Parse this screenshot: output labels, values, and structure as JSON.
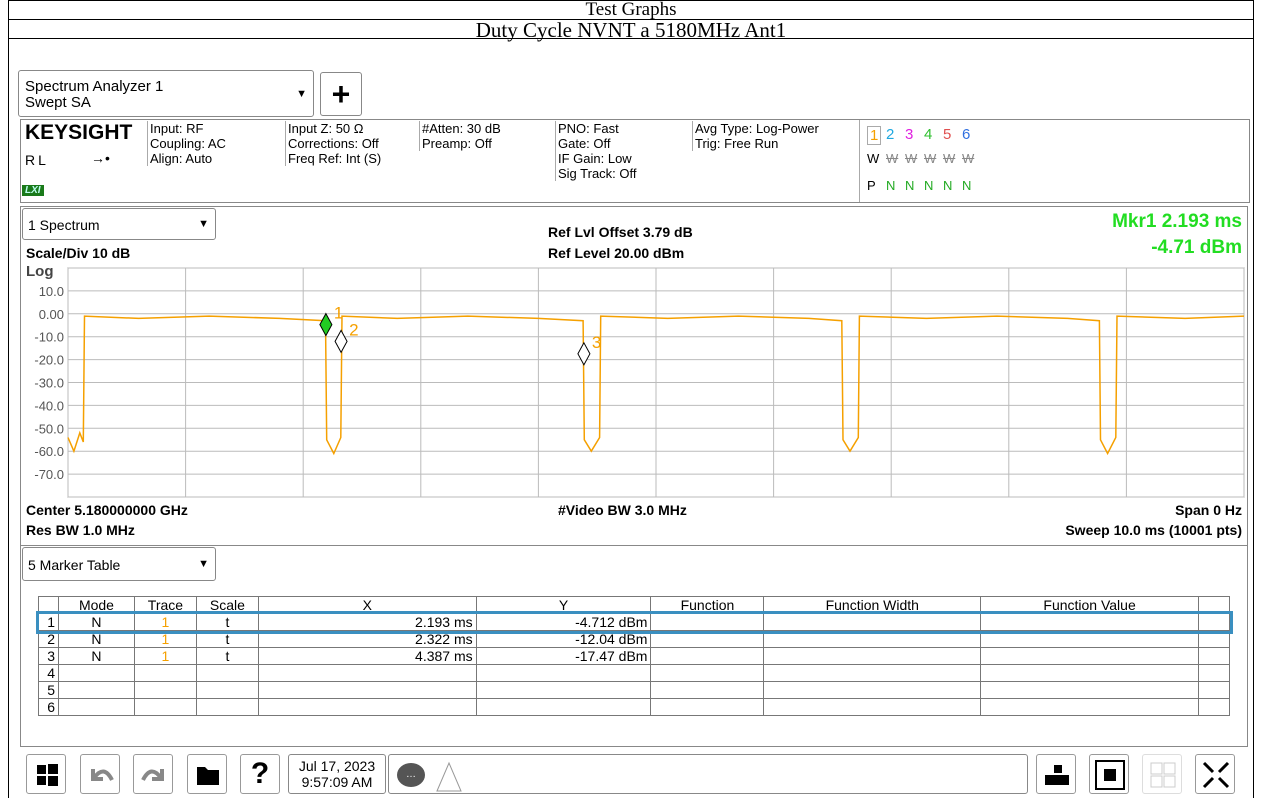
{
  "header": {
    "title": "Test Graphs",
    "subtitle": "Duty Cycle NVNT a 5180MHz Ant1"
  },
  "tab": {
    "name": "Spectrum Analyzer 1",
    "mode": "Swept SA",
    "add": "+"
  },
  "info": {
    "brand": "KEYSIGHT",
    "rl": "RL",
    "lxi": "LXI",
    "columns": [
      [
        "Input: RF",
        "Coupling: AC",
        "Align: Auto"
      ],
      [
        "Input Z: 50 Ω",
        "Corrections: Off",
        "Freq Ref: Int (S)"
      ],
      [
        "#Atten: 30 dB",
        "Preamp: Off"
      ],
      [
        "PNO: Fast",
        "Gate: Off",
        "IF Gain: Low",
        "Sig Track: Off"
      ],
      [
        "Avg Type: Log-Power",
        "Trig: Free Run"
      ]
    ],
    "traces": [
      {
        "num": "1",
        "color": "#f5a000",
        "w": "W",
        "p": "P"
      },
      {
        "num": "2",
        "color": "#1fa8e0",
        "w": "W",
        "p": "N"
      },
      {
        "num": "3",
        "color": "#e020e0",
        "w": "W",
        "p": "N"
      },
      {
        "num": "4",
        "color": "#30c030",
        "w": "W",
        "p": "N"
      },
      {
        "num": "5",
        "color": "#e05050",
        "w": "W",
        "p": "N"
      },
      {
        "num": "6",
        "color": "#3070e0",
        "w": "W",
        "p": "N"
      }
    ]
  },
  "graph": {
    "window": "1 Spectrum",
    "scale": "Scale/Div 10 dB",
    "log": "Log",
    "ref_offset": "Ref Lvl Offset 3.79 dB",
    "ref_level": "Ref Level 20.00 dBm",
    "marker_readout": [
      "Mkr1  2.193 ms",
      "-4.71 dBm"
    ],
    "center": "Center 5.180000000 GHz",
    "res_bw": "Res BW 1.0 MHz",
    "video_bw": "#Video BW 3.0 MHz",
    "span": "Span 0 Hz",
    "sweep": "Sweep 10.0 ms (10001 pts)",
    "xlim": [
      0,
      10
    ],
    "ylim": [
      -80,
      20
    ],
    "xticks": [
      0,
      1,
      2,
      3,
      4,
      5,
      6,
      7,
      8,
      9,
      10
    ],
    "yticks": [
      20,
      {
        "value": 10,
        "label": "10.0"
      },
      {
        "value": 0,
        "label": "0.00"
      },
      {
        "value": -10,
        "label": "-10.0"
      },
      {
        "value": -20,
        "label": "-20.0"
      },
      {
        "value": -30,
        "label": "-30.0"
      },
      {
        "value": -40,
        "label": "-40.0"
      },
      {
        "value": -50,
        "label": "-50.0"
      },
      {
        "value": -60,
        "label": "-60.0"
      },
      {
        "value": -70,
        "label": "-70.0"
      },
      -80
    ],
    "trace": {
      "color": "#f5a000",
      "x": [
        0,
        0.05,
        0.1,
        0.13,
        0.14,
        0.6,
        1.2,
        1.8,
        2.19,
        2.2,
        2.26,
        2.32,
        2.33,
        2.8,
        3.4,
        4.0,
        4.38,
        4.39,
        4.45,
        4.52,
        4.53,
        5.1,
        5.7,
        6.3,
        6.58,
        6.59,
        6.65,
        6.72,
        6.73,
        7.3,
        7.9,
        8.5,
        8.77,
        8.78,
        8.84,
        8.91,
        8.92,
        9.5,
        10
      ],
      "y": [
        -54,
        -60,
        -52,
        -56,
        -1,
        -2,
        -1,
        -2,
        -3,
        -55,
        -61,
        -54,
        -1,
        -2,
        -1,
        -2,
        -3,
        -55,
        -60,
        -54,
        -1,
        -2,
        -1,
        -2,
        -3,
        -55,
        -60,
        -54,
        -1,
        -2,
        -1,
        -2,
        -3,
        -55,
        -61,
        -54,
        -1,
        -2,
        -1
      ]
    },
    "markers": [
      {
        "label": "1",
        "x": 2.193,
        "y": -4.712
      },
      {
        "label": "2",
        "x": 2.322,
        "y": -12.04
      },
      {
        "label": "3",
        "x": 4.387,
        "y": -17.47
      }
    ]
  },
  "table": {
    "window": "5 Marker Table",
    "columns": [
      "Mode",
      "Trace",
      "Scale",
      "X",
      "Y",
      "Function",
      "Function Width",
      "Function Value"
    ],
    "rows": [
      [
        "1",
        "N",
        "1",
        "t",
        "2.193 ms",
        "-4.712 dBm"
      ],
      [
        "2",
        "N",
        "1",
        "t",
        "2.322 ms",
        "-12.04 dBm"
      ],
      [
        "3",
        "N",
        "1",
        "t",
        "4.387 ms",
        "-17.47 dBm"
      ],
      [
        "4"
      ],
      [
        "5"
      ],
      [
        "6"
      ]
    ]
  },
  "toolbar": {
    "date": "Jul 17, 2023",
    "time": "9:57:09 AM"
  }
}
